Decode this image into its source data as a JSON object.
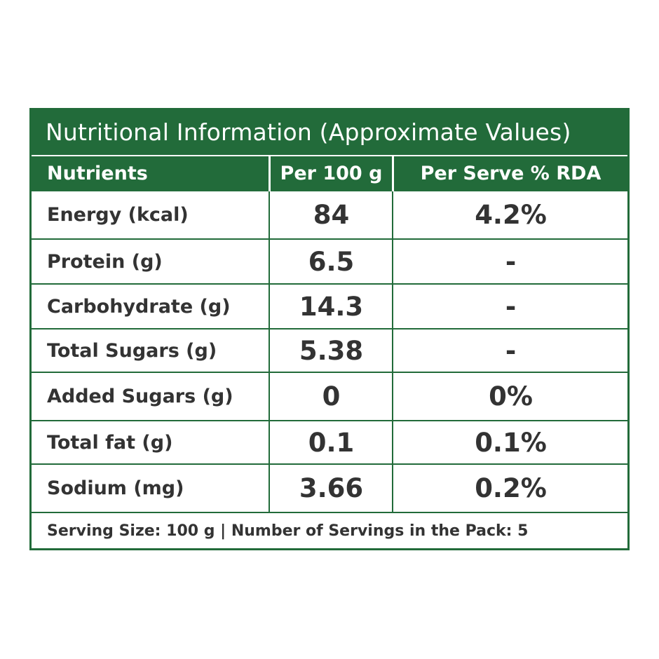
{
  "label": {
    "title": "Nutritional Information (Approximate Values)",
    "headers": [
      "Nutrients",
      "Per 100 g",
      "Per Serve % RDA"
    ],
    "rows": [
      {
        "name": "Energy (kcal)",
        "per_100g": "84",
        "rda": "4.2%"
      },
      {
        "name": "Protein (g)",
        "per_100g": "6.5",
        "rda": "-"
      },
      {
        "name": "Carbohydrate (g)",
        "per_100g": "14.3",
        "rda": "-"
      },
      {
        "name": "Total Sugars (g)",
        "per_100g": "5.38",
        "rda": "-"
      },
      {
        "name": "Added Sugars (g)",
        "per_100g": "0",
        "rda": "0%"
      },
      {
        "name": "Total fat (g)",
        "per_100g": "0.1",
        "rda": "0.1%"
      },
      {
        "name": "Sodium (mg)",
        "per_100g": "3.66",
        "rda": "0.2%"
      }
    ],
    "footer": "Serving Size: 100 g | Number of Servings in the Pack: 5",
    "colors": {
      "brand_green": "#226b3a",
      "text": "#333333",
      "background": "#ffffff"
    }
  }
}
